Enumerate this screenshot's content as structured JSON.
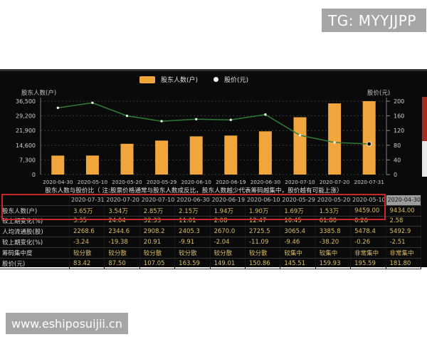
{
  "overlays": {
    "tg_label": "TG: MYYJJPP",
    "watermark": "www.eshiposuijii.cn"
  },
  "note": "股东人数与股价比（ 注:股票价格通常与股东人数成反比，股东人数越少代表筹码越集中，股价越有可能上涨）",
  "chart_data": {
    "type": "bar",
    "categories": [
      "2020-04-30",
      "2020-05-10",
      "2020-05-20",
      "2020-05-29",
      "2020-06-10",
      "2020-06-19",
      "2020-06-30",
      "2020-07-10",
      "2020-07-20",
      "2020-07-31"
    ],
    "series": [
      {
        "name": "股东人数(户)",
        "type": "bar",
        "color": "#f0a63c",
        "values": [
          9434,
          9459,
          15300,
          16900,
          19000,
          19400,
          21500,
          28500,
          35400,
          36500
        ]
      },
      {
        "name": "股价(元)",
        "type": "line",
        "color": "#2e7d36",
        "values": [
          181.8,
          195.59,
          159.93,
          145.51,
          150.86,
          149.01,
          163.59,
          107.05,
          87.5,
          83.42
        ]
      }
    ],
    "left_axis": {
      "title": "股东人数(户)",
      "ticks": [
        "36,500",
        "29,200",
        "21,900",
        "14,600",
        "7,300",
        "0"
      ],
      "max": 36500
    },
    "right_axis": {
      "title": "股价(元)",
      "ticks": [
        "200",
        "160",
        "120",
        "80",
        "40",
        "0"
      ],
      "max": 200
    },
    "legend": [
      {
        "label": "股东人数(户)",
        "marker": "bar-swatch"
      },
      {
        "label": "股价(元)",
        "marker": "dot"
      }
    ],
    "grid": "dashed-horizontal",
    "legend_position": "top-center"
  },
  "table": {
    "columns": [
      "",
      "2020-07-31",
      "2020-07-20",
      "2020-07-10",
      "2020-06-30",
      "2020-06-19",
      "2020-06-10",
      "2020-05-29",
      "2020-05-20",
      "2020-05-10",
      "2020-04-30"
    ],
    "rows": [
      {
        "label": "股东人数(户)",
        "values": [
          "3.65万",
          "3.54万",
          "2.85万",
          "2.15万",
          "1.94万",
          "1.90万",
          "1.69万",
          "1.53万",
          "9459.00",
          "9434.00"
        ]
      },
      {
        "label": "较上期变化(%)",
        "values": [
          "3.35",
          "24.04",
          "32.33",
          "11.01",
          "2.08",
          "12.47",
          "10.45",
          "61.80",
          "0.26",
          "2.58"
        ]
      },
      {
        "label": "人均流通股(股)",
        "values": [
          "2268.6",
          "2344.6",
          "2908.2",
          "2405.3",
          "2670.0",
          "2725.5",
          "3065.4",
          "3385.8",
          "5478.4",
          "5492.9"
        ]
      },
      {
        "label": "较上期变化(%)",
        "values": [
          "-3.24",
          "-19.38",
          "20.91",
          "-9.91",
          "-2.04",
          "-11.09",
          "-9.46",
          "-38.20",
          "-0.26",
          "-2.51"
        ]
      },
      {
        "label": "筹码集中度",
        "values": [
          "较分散",
          "较分散",
          "较分散",
          "较分散",
          "较分散",
          "较分散",
          "较集中",
          "较集中",
          "非常集中",
          "非常集中"
        ]
      },
      {
        "label": "股价(元)",
        "values": [
          "83.42",
          "87.50",
          "107.05",
          "163.59",
          "149.01",
          "150.86",
          "145.51",
          "159.93",
          "195.59",
          "181.80"
        ]
      }
    ]
  },
  "colors": {
    "bar_orange": "#f0a63c",
    "line_green": "#2e7d36",
    "highlight_red": "#c62828",
    "panel_bg": "#0a0a0a",
    "value_yellow": "#d9bd66",
    "watermark_gray": "#a5a5a5"
  }
}
